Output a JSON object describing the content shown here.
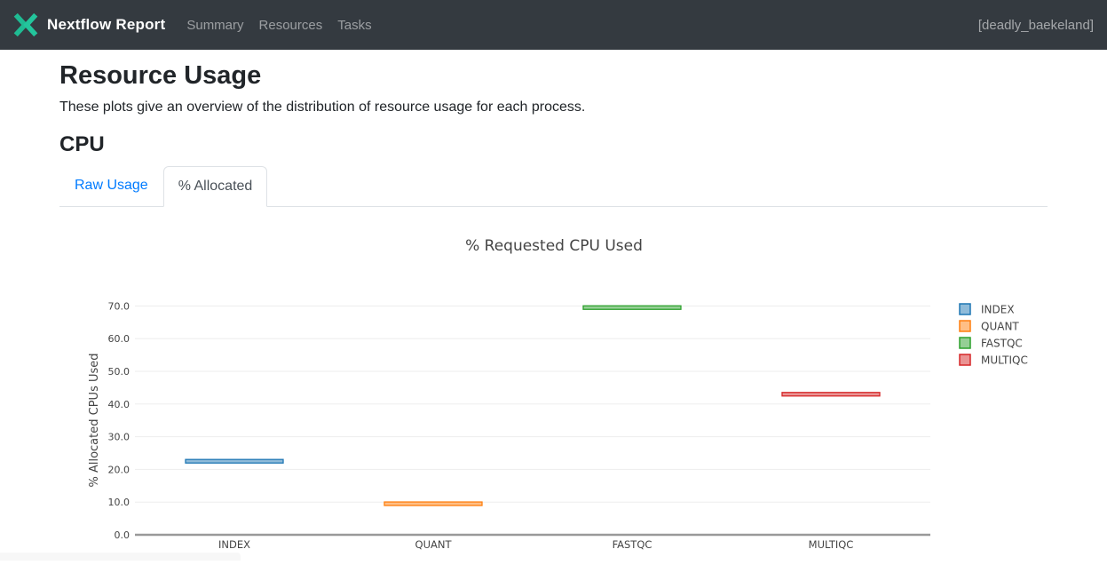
{
  "navbar": {
    "brand": "Nextflow Report",
    "links": [
      "Summary",
      "Resources",
      "Tasks"
    ],
    "run_name": "[deadly_baekeland]",
    "bg_color": "#343a40",
    "logo_color": "#1fbb93"
  },
  "page": {
    "title": "Resource Usage",
    "description": "These plots give an overview of the distribution of resource usage for each process.",
    "section_title": "CPU"
  },
  "tabs": [
    {
      "label": "Raw Usage",
      "active": false
    },
    {
      "label": "% Allocated",
      "active": true
    }
  ],
  "chart_data": {
    "type": "box",
    "title": "% Requested CPU Used",
    "xlabel": "",
    "ylabel": "% Allocated CPUs Used",
    "categories": [
      "INDEX",
      "QUANT",
      "FASTQC",
      "MULTIQC"
    ],
    "series": [
      {
        "name": "INDEX",
        "values": [
          22.5
        ],
        "color": "#1f77b4",
        "fill_color": "#8fbbd9"
      },
      {
        "name": "QUANT",
        "values": [
          9.5
        ],
        "color": "#ff7f0e",
        "fill_color": "#ffbf86"
      },
      {
        "name": "FASTQC",
        "values": [
          69.5
        ],
        "color": "#2ca02c",
        "fill_color": "#95cf95"
      },
      {
        "name": "MULTIQC",
        "values": [
          43.0
        ],
        "color": "#d62728",
        "fill_color": "#ea9393"
      }
    ],
    "yticks": [
      0.0,
      10.0,
      20.0,
      30.0,
      40.0,
      50.0,
      60.0,
      70.0
    ],
    "ylim": [
      0,
      77
    ],
    "grid": true,
    "legend_position": "right",
    "colors": {
      "grid": "#ededed",
      "axis_line": "#999999",
      "text": "#444444"
    }
  }
}
